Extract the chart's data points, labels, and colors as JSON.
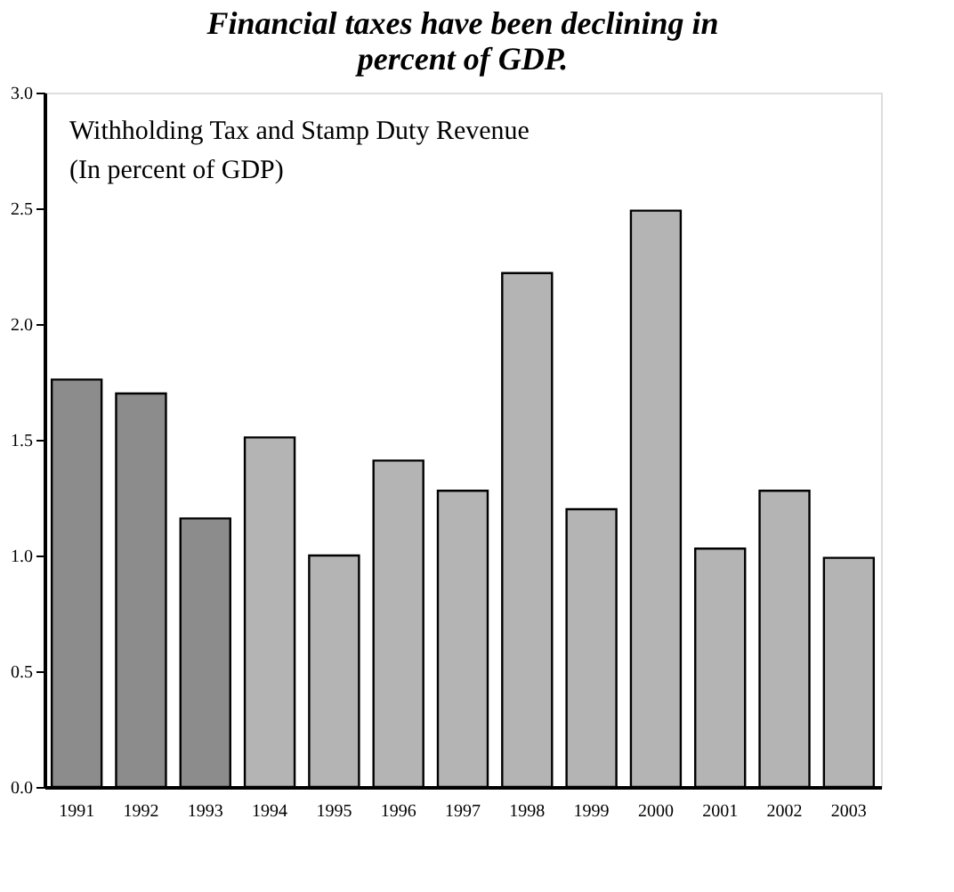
{
  "chart_data": {
    "type": "bar",
    "title": [
      "Financial taxes have been declining in",
      "percent of GDP."
    ],
    "annotations": [
      "Withholding Tax and Stamp Duty Revenue",
      " (In percent of GDP)"
    ],
    "categories": [
      "1991",
      "1992",
      "1993",
      "1994",
      "1995",
      "1996",
      "1997",
      "1998",
      "1999",
      "2000",
      "2001",
      "2002",
      "2003"
    ],
    "values": [
      1.76,
      1.7,
      1.16,
      1.51,
      1.0,
      1.41,
      1.28,
      2.22,
      1.2,
      2.49,
      1.03,
      1.28,
      0.99
    ],
    "colors": [
      "#8c8c8c",
      "#8c8c8c",
      "#8c8c8c",
      "#b4b4b4",
      "#b4b4b4",
      "#b4b4b4",
      "#b4b4b4",
      "#b4b4b4",
      "#b4b4b4",
      "#b4b4b4",
      "#b4b4b4",
      "#b4b4b4",
      "#b4b4b4"
    ],
    "ylim": [
      0,
      3.0
    ],
    "yticks": [
      {
        "value": 0,
        "label": "0.0"
      },
      {
        "value": 0.5,
        "label": "0.5"
      },
      {
        "value": 1,
        "label": "1.0"
      },
      {
        "value": 1.5,
        "label": "1.5"
      },
      {
        "value": 2,
        "label": "2.0"
      },
      {
        "value": 2.5,
        "label": "2.5"
      },
      {
        "value": 3,
        "label": "3.0"
      }
    ],
    "grid": false
  }
}
